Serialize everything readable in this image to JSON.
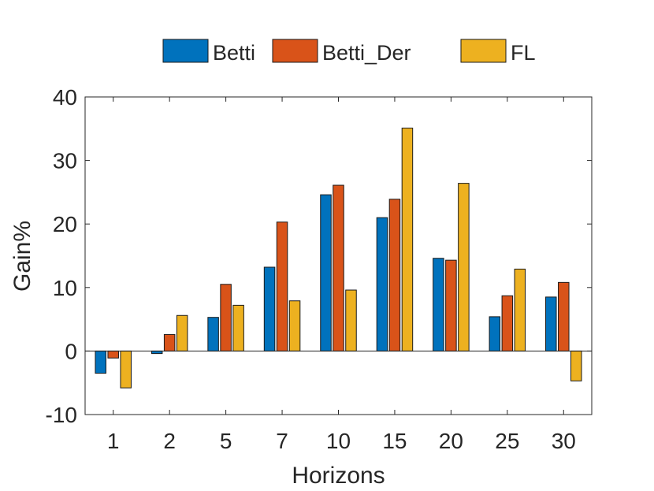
{
  "chart_data": {
    "type": "bar",
    "categories": [
      "1",
      "2",
      "5",
      "7",
      "10",
      "15",
      "20",
      "25",
      "30"
    ],
    "series": [
      {
        "name": "Betti",
        "color": "#0072BD",
        "values": [
          -3.5,
          -0.4,
          5.3,
          13.2,
          24.6,
          21.0,
          14.6,
          5.4,
          8.5
        ]
      },
      {
        "name": "Betti_Der",
        "color": "#D95319",
        "values": [
          -1.1,
          2.6,
          10.5,
          20.3,
          26.1,
          23.9,
          14.3,
          8.7,
          10.8
        ]
      },
      {
        "name": "FL",
        "color": "#EDB120",
        "values": [
          -5.8,
          5.6,
          7.2,
          7.9,
          9.6,
          35.1,
          26.4,
          12.9,
          -4.7
        ]
      }
    ],
    "xlabel": "Horizons",
    "ylabel": "Gain%",
    "ylim": [
      -10,
      40
    ],
    "yticks": [
      -10,
      0,
      10,
      20,
      30,
      40
    ],
    "yticklabels": [
      "-10",
      "0",
      "10",
      "20",
      "30",
      "40"
    ],
    "grid": false,
    "legend_position": "top-center-outside"
  }
}
